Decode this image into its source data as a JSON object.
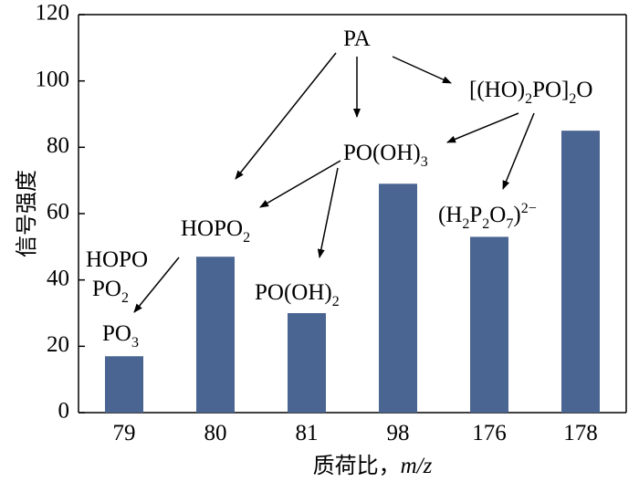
{
  "chart_data": {
    "type": "bar",
    "categories": [
      "79",
      "80",
      "81",
      "98",
      "176",
      "178"
    ],
    "values": [
      17,
      47,
      30,
      69,
      53,
      85
    ],
    "bar_color": "#4a6591",
    "ylim": [
      0,
      120
    ],
    "yticks": [
      0,
      20,
      40,
      60,
      80,
      100,
      120
    ],
    "ylabel": "信号强度",
    "xlabel": "质荷比，",
    "xlabel_italic": "m/z",
    "grid": false,
    "annotations": {
      "pa": "PA",
      "pyro": {
        "a": "[(HO)",
        "b": "2",
        "c": "PO]",
        "d": "2",
        "e": "O"
      },
      "phos": {
        "a": "PO(OH)",
        "b": "3"
      },
      "h2p2o7": {
        "a": "(H",
        "b": "2",
        "c": "P",
        "d": "2",
        "e": "O",
        "f": "7",
        "g": ")",
        "h": "2−"
      },
      "hopo2_80": {
        "a": "HOPO",
        "b": "2"
      },
      "hopo_79": "HOPO",
      "po2_79": {
        "a": "PO",
        "b": "2"
      },
      "po3_79": {
        "a": "PO",
        "b": "3"
      },
      "poh2_81": {
        "a": "PO(OH)",
        "b": "2"
      }
    }
  }
}
